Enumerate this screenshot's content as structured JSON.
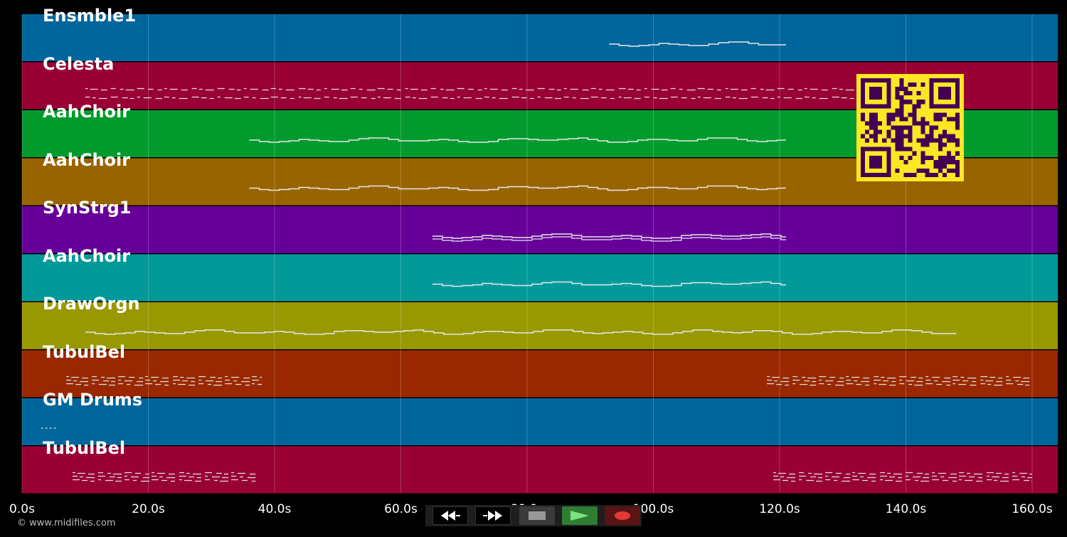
{
  "tracks": [
    {
      "label": "Ensmble1",
      "color": "#01669b"
    },
    {
      "label": "Celesta",
      "color": "#990033"
    },
    {
      "label": "AahChoir",
      "color": "#029a2d"
    },
    {
      "label": "AahChoir",
      "color": "#986400"
    },
    {
      "label": "SynStrg1",
      "color": "#660099"
    },
    {
      "label": "AahChoir",
      "color": "#029999"
    },
    {
      "label": "DrawOrgn",
      "color": "#989801"
    },
    {
      "label": "TubulBel",
      "color": "#992800"
    },
    {
      "label": "GM Drums",
      "color": "#01669b"
    },
    {
      "label": "TubulBel",
      "color": "#990033"
    }
  ],
  "timeline": {
    "ticks": [
      "0.0s",
      "20.0s",
      "40.0s",
      "60.0s",
      "80.0s",
      "100.0s",
      "120.0s",
      "140.0s",
      "160.0s"
    ],
    "tick_seconds": [
      0,
      20,
      40,
      60,
      80,
      100,
      120,
      140,
      160
    ],
    "max_seconds": 164
  },
  "notes": [
    {
      "track": 0,
      "segments": [
        [
          93,
          121
        ]
      ]
    },
    {
      "track": 1,
      "segments": [
        [
          10,
          132
        ]
      ]
    },
    {
      "track": 2,
      "segments": [
        [
          36,
          121
        ]
      ]
    },
    {
      "track": 3,
      "segments": [
        [
          36,
          121
        ]
      ]
    },
    {
      "track": 4,
      "segments": [
        [
          65,
          121
        ]
      ]
    },
    {
      "track": 5,
      "segments": [
        [
          65,
          121
        ]
      ]
    },
    {
      "track": 6,
      "segments": [
        [
          10,
          148
        ]
      ]
    },
    {
      "track": 7,
      "segments": [
        [
          7,
          38
        ],
        [
          118,
          160
        ]
      ]
    },
    {
      "track": 8,
      "segments": [
        [
          3,
          6
        ]
      ]
    },
    {
      "track": 9,
      "segments": [
        [
          8,
          37
        ],
        [
          119,
          160
        ]
      ]
    }
  ],
  "transport": {
    "rewind": "rewind-icon",
    "fast_forward": "fast-forward-icon",
    "stop": "stop-icon",
    "play": "play-icon",
    "record": "record-icon"
  },
  "colors": {
    "qr_bg": "#fde724",
    "qr_fg": "#440154",
    "play_bg": "#2e7d32",
    "play_fg": "#7ee07e",
    "record_bg": "#5a1414",
    "record_fg": "#e53935"
  },
  "copyright": "© www.midifiles.com"
}
